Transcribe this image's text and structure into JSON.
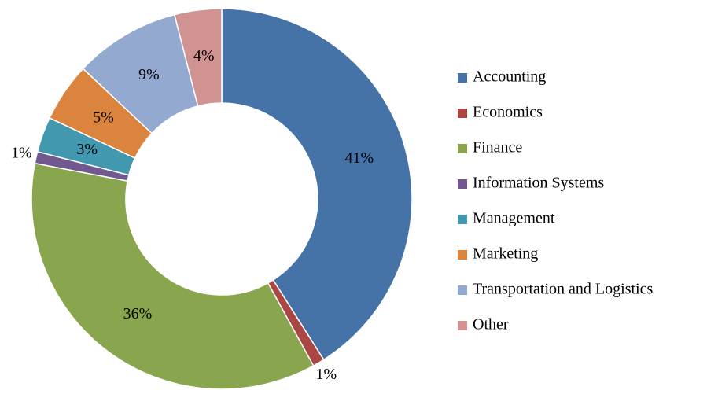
{
  "chart_data": {
    "type": "donut",
    "categories": [
      "Accounting",
      "Economics",
      "Finance",
      "Information Systems",
      "Management",
      "Marketing",
      "Transportation and Logistics",
      "Other"
    ],
    "values": [
      41,
      1,
      36,
      1,
      3,
      5,
      9,
      4
    ],
    "value_labels": [
      "41%",
      "1%",
      "36%",
      "1%",
      "3%",
      "5%",
      "9%",
      "4%"
    ],
    "colors": [
      "#4572a7",
      "#aa4643",
      "#89a54e",
      "#71588f",
      "#4198af",
      "#db843d",
      "#93a9cf",
      "#d19392"
    ],
    "legend": "right"
  }
}
